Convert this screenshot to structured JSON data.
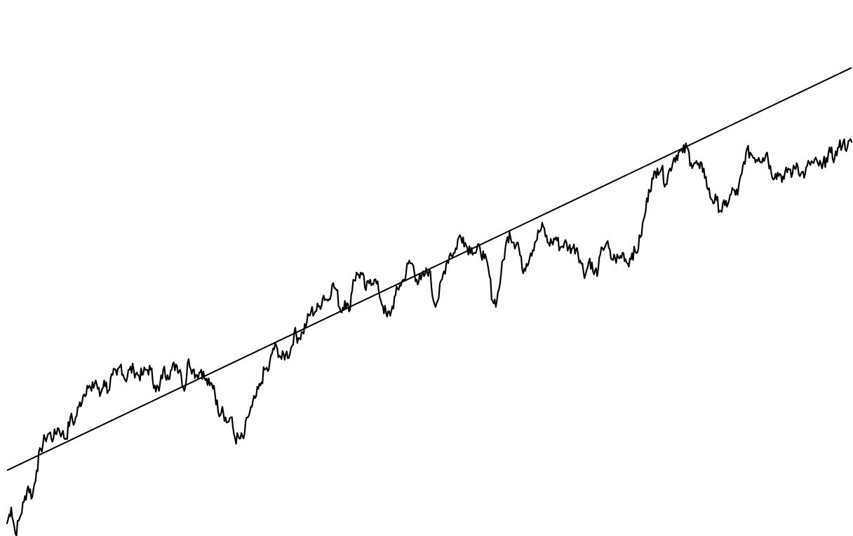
{
  "chart_data": {
    "type": "line",
    "title": "",
    "xlabel": "",
    "ylabel": "",
    "grid": false,
    "legend": "none",
    "axes_visible": false,
    "xlim": [
      0,
      1000
    ],
    "ylim": [
      0,
      100
    ],
    "line_color": "#000000",
    "trend_color": "#000000",
    "series": [
      {
        "role": "price",
        "x": [
          0,
          5,
          10,
          15,
          20,
          25,
          30,
          35,
          40,
          45,
          50,
          55,
          60,
          65,
          70,
          75,
          80,
          85,
          90,
          95,
          100,
          105,
          110,
          115,
          120,
          125,
          130,
          135,
          140,
          145,
          150,
          155,
          160,
          165,
          170,
          175,
          180,
          185,
          190,
          195,
          200,
          205,
          210,
          215,
          220,
          225,
          230,
          235,
          240,
          245,
          250,
          255,
          260,
          265,
          270,
          275,
          280,
          285,
          290,
          295,
          300,
          305,
          310,
          315,
          320,
          325,
          330,
          335,
          340,
          345,
          350,
          355,
          360,
          365,
          370,
          375,
          380,
          385,
          390,
          395,
          400,
          405,
          410,
          415,
          420,
          425,
          430,
          435,
          440,
          445,
          450,
          455,
          460,
          465,
          470,
          475,
          480,
          485,
          490,
          495,
          500,
          505,
          510,
          515,
          520,
          525,
          530,
          535,
          540,
          545,
          550,
          555,
          560,
          565,
          570,
          575,
          580,
          585,
          590,
          595,
          600,
          605,
          610,
          615,
          620,
          625,
          630,
          635,
          640,
          645,
          650,
          655,
          660,
          665,
          670,
          675,
          680,
          685,
          690,
          695,
          700,
          705,
          710,
          715,
          720,
          725,
          730,
          735,
          740,
          745,
          750,
          755,
          760,
          765,
          770,
          775,
          780,
          785,
          790,
          795,
          800,
          805,
          810,
          815,
          820,
          825,
          830,
          835,
          840,
          845,
          850,
          855,
          860,
          865,
          870,
          875,
          880,
          885,
          890,
          895,
          900,
          905,
          910,
          915,
          920,
          925,
          930,
          935,
          940,
          945,
          950,
          955,
          960,
          965,
          970,
          975,
          980,
          985,
          990,
          995,
          1000
        ],
        "values": [
          2,
          5,
          0,
          3,
          6,
          9,
          7,
          12,
          16,
          18,
          19,
          18,
          20,
          19,
          18,
          22,
          21,
          24,
          26,
          28,
          27,
          29,
          26,
          29,
          27,
          30,
          30,
          32,
          29,
          31,
          31,
          30,
          30,
          31,
          31,
          28,
          27,
          31,
          30,
          31,
          32,
          31,
          27,
          33,
          31,
          30,
          31,
          29,
          28,
          28,
          23,
          24,
          21,
          22,
          18,
          18,
          18,
          22,
          24,
          26,
          28,
          31,
          31,
          35,
          35,
          33,
          34,
          34,
          38,
          37,
          38,
          40,
          42,
          42,
          43,
          45,
          44,
          47,
          46,
          42,
          44,
          42,
          48,
          49,
          49,
          46,
          48,
          48,
          46,
          43,
          41,
          42,
          45,
          47,
          48,
          51,
          51,
          48,
          48,
          49,
          50,
          44,
          44,
          48,
          51,
          53,
          53,
          56,
          56,
          54,
          54,
          53,
          54,
          52,
          50,
          44,
          44,
          49,
          54,
          57,
          55,
          55,
          50,
          51,
          53,
          55,
          57,
          58,
          55,
          55,
          56,
          54,
          55,
          54,
          54,
          54,
          51,
          49,
          52,
          49,
          50,
          54,
          55,
          52,
          52,
          52,
          53,
          51,
          53,
          53,
          56,
          60,
          65,
          67,
          69,
          69,
          66,
          69,
          71,
          72,
          72,
          73,
          70,
          70,
          69,
          69,
          65,
          63,
          63,
          61,
          62,
          63,
          65,
          64,
          68,
          72,
          72,
          71,
          71,
          71,
          72,
          68,
          68,
          68,
          67,
          69,
          68,
          70,
          68,
          68,
          70,
          70,
          70,
          69,
          71,
          72,
          71,
          73,
          74,
          73,
          74
        ]
      },
      {
        "role": "trend",
        "x": [
          0,
          1000
        ],
        "values": [
          12,
          88
        ]
      }
    ]
  }
}
